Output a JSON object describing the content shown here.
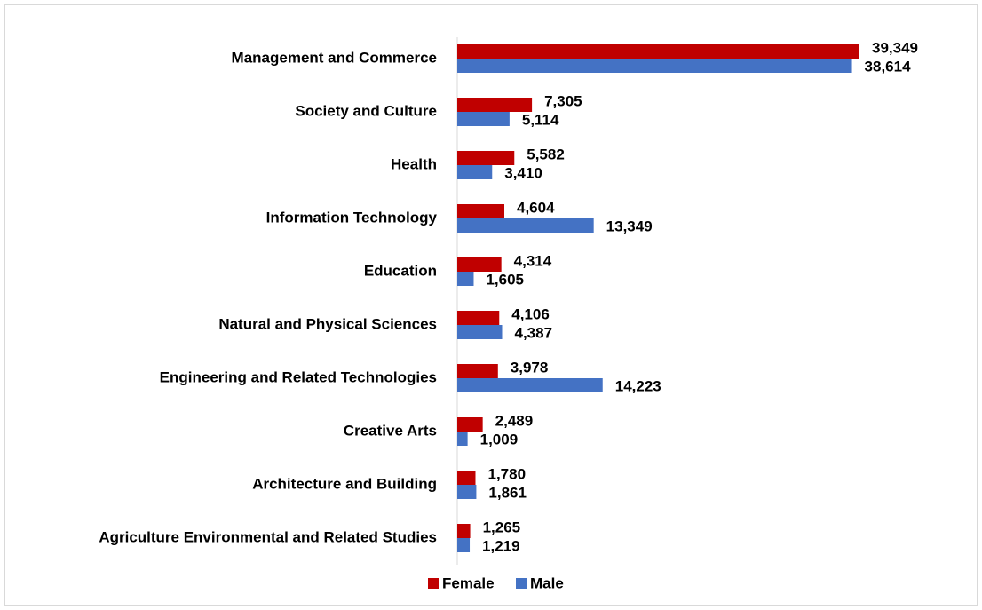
{
  "chart_data": {
    "type": "hbar",
    "categories": [
      "Management and Commerce",
      "Society and Culture",
      "Health",
      "Information Technology",
      "Education",
      "Natural and Physical Sciences",
      "Engineering and Related Technologies",
      "Creative Arts",
      "Architecture and Building",
      "Agriculture Environmental and Related Studies"
    ],
    "series": [
      {
        "name": "Female",
        "color": "#c00000",
        "values": [
          39349,
          7305,
          5582,
          4604,
          4314,
          4106,
          3978,
          2489,
          1780,
          1265
        ],
        "value_labels": [
          "39,349",
          "7,305",
          "5,582",
          "4,604",
          "4,314",
          "4,106",
          "3,978",
          "2,489",
          "1,780",
          "1,265"
        ]
      },
      {
        "name": "Male",
        "color": "#4472c4",
        "values": [
          38614,
          5114,
          3410,
          13349,
          1605,
          4387,
          14223,
          1009,
          1861,
          1219
        ],
        "value_labels": [
          "38,614",
          "5,114",
          "3,410",
          "13,349",
          "1,605",
          "4,387",
          "14,223",
          "1,009",
          "1,861",
          "1,219"
        ]
      }
    ],
    "legend": "bottom"
  }
}
